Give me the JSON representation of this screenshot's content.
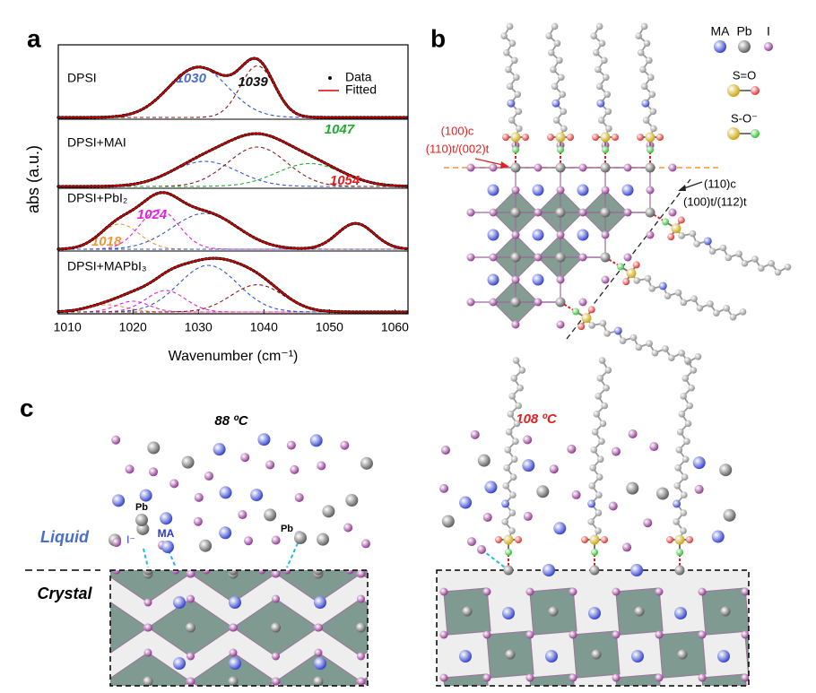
{
  "panel_labels": [
    "a",
    "b",
    "c"
  ],
  "chart_data": {
    "type": "line",
    "x_label": "Wavenumber (cm⁻¹)",
    "y_label": "abs (a.u.)",
    "xlim": [
      1008.6,
      1062
    ],
    "xticks": [
      1010,
      1020,
      1030,
      1040,
      1050,
      1060
    ],
    "legend": [
      {
        "name": "Data",
        "color": "#000000"
      },
      {
        "name": "Fitted",
        "color": "#e00000"
      }
    ],
    "spectra": [
      {
        "name": "DPSI",
        "components": [
          {
            "center": 1030,
            "width": 4.5,
            "height": 0.7,
            "color": "#3355cc",
            "label": "1030"
          },
          {
            "center": 1039,
            "width": 2.6,
            "height": 0.72,
            "color": "#8b1a1a",
            "label": "1039"
          }
        ]
      },
      {
        "name": "DPSI+MAI",
        "components": [
          {
            "center": 1031,
            "width": 5,
            "height": 0.35,
            "color": "#3355cc"
          },
          {
            "center": 1039,
            "width": 4.5,
            "height": 0.55,
            "color": "#8b1a1a"
          },
          {
            "center": 1047,
            "width": 5,
            "height": 0.32,
            "color": "#22aa33",
            "label": "1047"
          }
        ]
      },
      {
        "name": "DPSI+PbI₂",
        "components": [
          {
            "center": 1018,
            "width": 3,
            "height": 0.35,
            "color": "#f0963c",
            "label": "1018"
          },
          {
            "center": 1024,
            "width": 3,
            "height": 0.55,
            "color": "#e020e0",
            "label": "1024"
          },
          {
            "center": 1031,
            "width": 5,
            "height": 0.5,
            "color": "#3355cc"
          },
          {
            "center": 1054,
            "width": 2.8,
            "height": 0.36,
            "color": "#3355cc",
            "label": "1054"
          }
        ]
      },
      {
        "name": "DPSI+MAPbI₃",
        "components": [
          {
            "center": 1016,
            "width": 3,
            "height": 0.1,
            "color": "#f0963c"
          },
          {
            "center": 1020,
            "width": 2.5,
            "height": 0.15,
            "color": "#e020e0"
          },
          {
            "center": 1025,
            "width": 3,
            "height": 0.3,
            "color": "#e020e0"
          },
          {
            "center": 1031.5,
            "width": 4.5,
            "height": 0.65,
            "color": "#3355cc"
          },
          {
            "center": 1039,
            "width": 4,
            "height": 0.38,
            "color": "#8b1a1a"
          }
        ]
      }
    ],
    "peak_label_colors": {
      "1030": "#4a6fc9",
      "1039": "#111111",
      "1047": "#22aa33",
      "1018": "#f0963c",
      "1024": "#e020e0",
      "1054": "#e02020"
    }
  },
  "diagram_b": {
    "atoms": [
      {
        "name": "MA",
        "color": "#2a3acb"
      },
      {
        "name": "Pb",
        "color": "#555555"
      },
      {
        "name": "I",
        "color": "#8a2a8a"
      }
    ],
    "bonds": [
      "S=O",
      "S-O⁻"
    ],
    "planes": [
      {
        "label": "(100)c",
        "sub": "(110)t/(002)t"
      },
      {
        "label": "(110)c",
        "sub": "(100)t/(112)t"
      }
    ]
  },
  "diagram_c": {
    "left_temperature": "88 ºC",
    "right_temperature": "108 ºC",
    "phases": [
      "Liquid",
      "Crystal"
    ],
    "atom_labels": [
      "Pb",
      "MA",
      "I⁻",
      "Pb"
    ]
  }
}
